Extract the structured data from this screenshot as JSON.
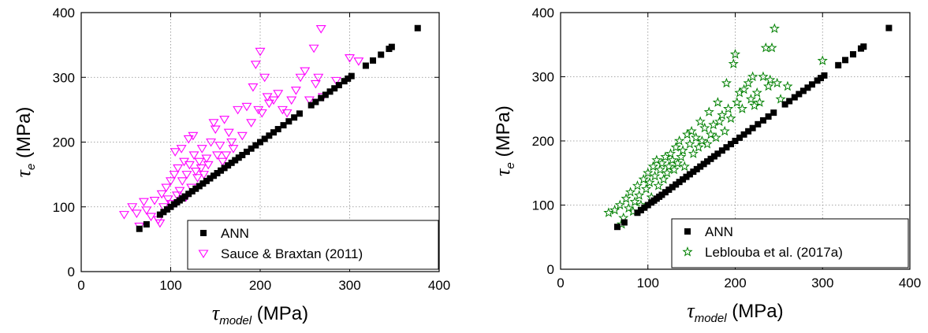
{
  "chart_data": [
    {
      "type": "scatter",
      "xlabel_symbol": "τ",
      "xlabel_subscript": "model",
      "xlabel_unit": "(MPa)",
      "ylabel_symbol": "τ",
      "ylabel_subscript": "e",
      "ylabel_unit": "(MPa)",
      "xlim": [
        0,
        400
      ],
      "ylim": [
        0,
        400
      ],
      "xticks": [
        0,
        100,
        200,
        300,
        400
      ],
      "yticks": [
        0,
        100,
        200,
        300,
        400
      ],
      "grid": true,
      "legend_position": "bottom-right",
      "series": [
        {
          "name": "ANN",
          "marker": "square",
          "color": "#000000",
          "points": [
            [
              65,
              66
            ],
            [
              73,
              73
            ],
            [
              88,
              88
            ],
            [
              92,
              92
            ],
            [
              96,
              96
            ],
            [
              100,
              100
            ],
            [
              104,
              104
            ],
            [
              107,
              107
            ],
            [
              110,
              110
            ],
            [
              113,
              113
            ],
            [
              116,
              116
            ],
            [
              120,
              120
            ],
            [
              124,
              124
            ],
            [
              128,
              128
            ],
            [
              132,
              132
            ],
            [
              136,
              136
            ],
            [
              140,
              140
            ],
            [
              144,
              144
            ],
            [
              148,
              148
            ],
            [
              152,
              152
            ],
            [
              156,
              156
            ],
            [
              160,
              160
            ],
            [
              164,
              164
            ],
            [
              168,
              168
            ],
            [
              172,
              172
            ],
            [
              176,
              176
            ],
            [
              180,
              180
            ],
            [
              185,
              185
            ],
            [
              190,
              190
            ],
            [
              195,
              195
            ],
            [
              200,
              200
            ],
            [
              205,
              205
            ],
            [
              210,
              210
            ],
            [
              215,
              215
            ],
            [
              220,
              220
            ],
            [
              226,
              226
            ],
            [
              232,
              232
            ],
            [
              238,
              238
            ],
            [
              244,
              244
            ],
            [
              257,
              257
            ],
            [
              262,
              262
            ],
            [
              268,
              268
            ],
            [
              273,
              273
            ],
            [
              278,
              278
            ],
            [
              283,
              283
            ],
            [
              288,
              288
            ],
            [
              294,
              294
            ],
            [
              298,
              298
            ],
            [
              302,
              302
            ],
            [
              318,
              318
            ],
            [
              326,
              326
            ],
            [
              335,
              335
            ],
            [
              344,
              344
            ],
            [
              347,
              347
            ],
            [
              376,
              376
            ]
          ]
        },
        {
          "name": "Sauce & Braxtan (2011)",
          "marker": "triangle-down-open",
          "color": "#ff00ff",
          "points": [
            [
              48,
              88
            ],
            [
              57,
              100
            ],
            [
              62,
              90
            ],
            [
              65,
              70
            ],
            [
              70,
              108
            ],
            [
              73,
              95
            ],
            [
              78,
              85
            ],
            [
              82,
              110
            ],
            [
              86,
              80
            ],
            [
              88,
              75
            ],
            [
              90,
              120
            ],
            [
              92,
              100
            ],
            [
              95,
              130
            ],
            [
              97,
              112
            ],
            [
              100,
              140
            ],
            [
              101,
              105
            ],
            [
              104,
              150
            ],
            [
              105,
              185
            ],
            [
              107,
              118
            ],
            [
              108,
              160
            ],
            [
              110,
              125
            ],
            [
              112,
              190
            ],
            [
              113,
              140
            ],
            [
              115,
              170
            ],
            [
              117,
              115
            ],
            [
              118,
              150
            ],
            [
              120,
              205
            ],
            [
              121,
              165
            ],
            [
              123,
              130
            ],
            [
              125,
              210
            ],
            [
              126,
              180
            ],
            [
              128,
              155
            ],
            [
              130,
              145
            ],
            [
              132,
              170
            ],
            [
              134,
              160
            ],
            [
              135,
              190
            ],
            [
              137,
              150
            ],
            [
              140,
              175
            ],
            [
              142,
              165
            ],
            [
              145,
              200
            ],
            [
              148,
              230
            ],
            [
              150,
              220
            ],
            [
              152,
              180
            ],
            [
              155,
              195
            ],
            [
              158,
              170
            ],
            [
              160,
              235
            ],
            [
              162,
              180
            ],
            [
              165,
              215
            ],
            [
              168,
              200
            ],
            [
              170,
              190
            ],
            [
              175,
              250
            ],
            [
              180,
              210
            ],
            [
              185,
              255
            ],
            [
              190,
              230
            ],
            [
              192,
              285
            ],
            [
              195,
              320
            ],
            [
              198,
              250
            ],
            [
              200,
              340
            ],
            [
              202,
              245
            ],
            [
              205,
              300
            ],
            [
              208,
              270
            ],
            [
              210,
              260
            ],
            [
              215,
              265
            ],
            [
              220,
              275
            ],
            [
              225,
              250
            ],
            [
              230,
              245
            ],
            [
              235,
              265
            ],
            [
              240,
              280
            ],
            [
              245,
              300
            ],
            [
              250,
              310
            ],
            [
              255,
              265
            ],
            [
              260,
              345
            ],
            [
              262,
              290
            ],
            [
              265,
              300
            ],
            [
              268,
              375
            ],
            [
              270,
              270
            ],
            [
              285,
              295
            ],
            [
              300,
              330
            ],
            [
              310,
              325
            ]
          ]
        }
      ]
    },
    {
      "type": "scatter",
      "xlabel_symbol": "τ",
      "xlabel_subscript": "model",
      "xlabel_unit": "(MPa)",
      "ylabel_symbol": "τ",
      "ylabel_subscript": "e",
      "ylabel_unit": "(MPa)",
      "xlim": [
        0,
        400
      ],
      "ylim": [
        0,
        400
      ],
      "xticks": [
        0,
        100,
        200,
        300,
        400
      ],
      "yticks": [
        0,
        100,
        200,
        300,
        400
      ],
      "grid": true,
      "legend_position": "bottom-right",
      "series": [
        {
          "name": "ANN",
          "marker": "square",
          "color": "#000000",
          "points": [
            [
              65,
              66
            ],
            [
              73,
              73
            ],
            [
              88,
              88
            ],
            [
              92,
              92
            ],
            [
              96,
              96
            ],
            [
              100,
              100
            ],
            [
              104,
              104
            ],
            [
              107,
              107
            ],
            [
              110,
              110
            ],
            [
              113,
              113
            ],
            [
              116,
              116
            ],
            [
              120,
              120
            ],
            [
              124,
              124
            ],
            [
              128,
              128
            ],
            [
              132,
              132
            ],
            [
              136,
              136
            ],
            [
              140,
              140
            ],
            [
              144,
              144
            ],
            [
              148,
              148
            ],
            [
              152,
              152
            ],
            [
              156,
              156
            ],
            [
              160,
              160
            ],
            [
              164,
              164
            ],
            [
              168,
              168
            ],
            [
              172,
              172
            ],
            [
              176,
              176
            ],
            [
              180,
              180
            ],
            [
              185,
              185
            ],
            [
              190,
              190
            ],
            [
              195,
              195
            ],
            [
              200,
              200
            ],
            [
              205,
              205
            ],
            [
              210,
              210
            ],
            [
              215,
              215
            ],
            [
              220,
              220
            ],
            [
              226,
              226
            ],
            [
              232,
              232
            ],
            [
              238,
              238
            ],
            [
              244,
              244
            ],
            [
              257,
              257
            ],
            [
              262,
              262
            ],
            [
              268,
              268
            ],
            [
              273,
              273
            ],
            [
              278,
              278
            ],
            [
              283,
              283
            ],
            [
              288,
              288
            ],
            [
              294,
              294
            ],
            [
              298,
              298
            ],
            [
              302,
              302
            ],
            [
              318,
              318
            ],
            [
              326,
              326
            ],
            [
              335,
              335
            ],
            [
              344,
              344
            ],
            [
              347,
              347
            ],
            [
              376,
              376
            ]
          ]
        },
        {
          "name": "Leblouba et al. (2017a)",
          "marker": "star-open",
          "color": "#008000",
          "points": [
            [
              55,
              88
            ],
            [
              62,
              92
            ],
            [
              68,
              100
            ],
            [
              70,
              70
            ],
            [
              72,
              80
            ],
            [
              75,
              110
            ],
            [
              78,
              95
            ],
            [
              80,
              120
            ],
            [
              83,
              90
            ],
            [
              85,
              105
            ],
            [
              88,
              130
            ],
            [
              90,
              115
            ],
            [
              92,
              100
            ],
            [
              95,
              140
            ],
            [
              98,
              125
            ],
            [
              100,
              150
            ],
            [
              102,
              135
            ],
            [
              104,
              112
            ],
            [
              106,
              160
            ],
            [
              108,
              145
            ],
            [
              110,
              170
            ],
            [
              112,
              130
            ],
            [
              114,
              155
            ],
            [
              116,
              165
            ],
            [
              118,
              140
            ],
            [
              120,
              175
            ],
            [
              122,
              150
            ],
            [
              124,
              160
            ],
            [
              126,
              180
            ],
            [
              128,
              170
            ],
            [
              130,
              155
            ],
            [
              132,
              190
            ],
            [
              134,
              165
            ],
            [
              136,
              200
            ],
            [
              138,
              175
            ],
            [
              140,
              185
            ],
            [
              142,
              160
            ],
            [
              145,
              210
            ],
            [
              148,
              195
            ],
            [
              150,
              215
            ],
            [
              152,
              180
            ],
            [
              155,
              205
            ],
            [
              158,
              190
            ],
            [
              160,
              230
            ],
            [
              162,
              200
            ],
            [
              165,
              220
            ],
            [
              168,
              195
            ],
            [
              170,
              245
            ],
            [
              172,
              210
            ],
            [
              175,
              225
            ],
            [
              178,
              205
            ],
            [
              180,
              260
            ],
            [
              182,
              230
            ],
            [
              185,
              240
            ],
            [
              188,
              215
            ],
            [
              190,
              290
            ],
            [
              192,
              250
            ],
            [
              195,
              235
            ],
            [
              198,
              320
            ],
            [
              200,
              335
            ],
            [
              202,
              260
            ],
            [
              205,
              275
            ],
            [
              208,
              250
            ],
            [
              210,
              280
            ],
            [
              215,
              290
            ],
            [
              218,
              265
            ],
            [
              220,
              300
            ],
            [
              222,
              255
            ],
            [
              225,
              275
            ],
            [
              228,
              260
            ],
            [
              232,
              300
            ],
            [
              235,
              345
            ],
            [
              238,
              285
            ],
            [
              240,
              295
            ],
            [
              242,
              345
            ],
            [
              245,
              375
            ],
            [
              248,
              290
            ],
            [
              252,
              265
            ],
            [
              260,
              285
            ],
            [
              300,
              325
            ]
          ]
        }
      ]
    }
  ]
}
